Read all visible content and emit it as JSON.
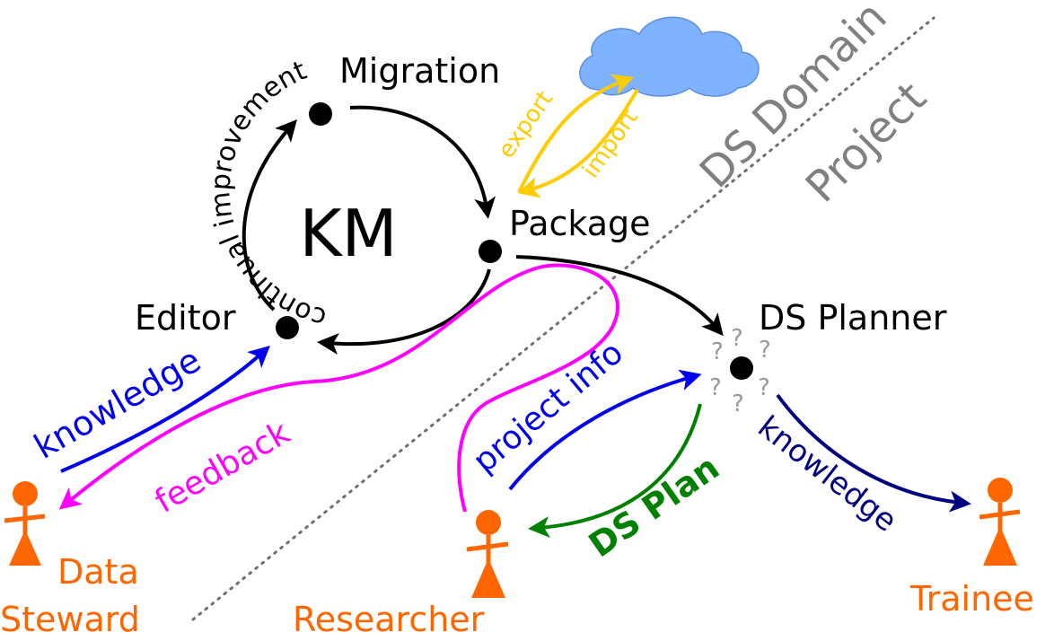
{
  "diagram": {
    "center": {
      "title": "KM",
      "arc_text": "continual improvement"
    },
    "nodes": {
      "migration": "Migration",
      "package": "Package",
      "editor": "Editor",
      "ds_planner": "DS Planner"
    },
    "question_marks": [
      "?",
      "?",
      "?",
      "?",
      "?",
      "?"
    ],
    "domain_labels": {
      "domain": "DS Domain",
      "project": "Project"
    },
    "actors": {
      "data_steward": [
        "Data",
        "Steward"
      ],
      "researcher": "Researcher",
      "trainee": "Trainee"
    },
    "flows": {
      "export": "export",
      "import": "import",
      "knowledge_left": "knowledge",
      "feedback": "feedback",
      "project_info": "project info",
      "ds_plan": "DS Plan",
      "knowledge_right": "knowledge"
    }
  },
  "colors": {
    "black": "#000000",
    "gold": "#ffcc00",
    "cloud": "#80b3ff",
    "cloud_edge": "#5c8fe0",
    "blue": "#0000ee",
    "magenta": "#ff00ff",
    "green": "#008000",
    "navy": "#000080",
    "orange": "#ff6600",
    "gray": "#808080",
    "qmark": "#999999"
  }
}
